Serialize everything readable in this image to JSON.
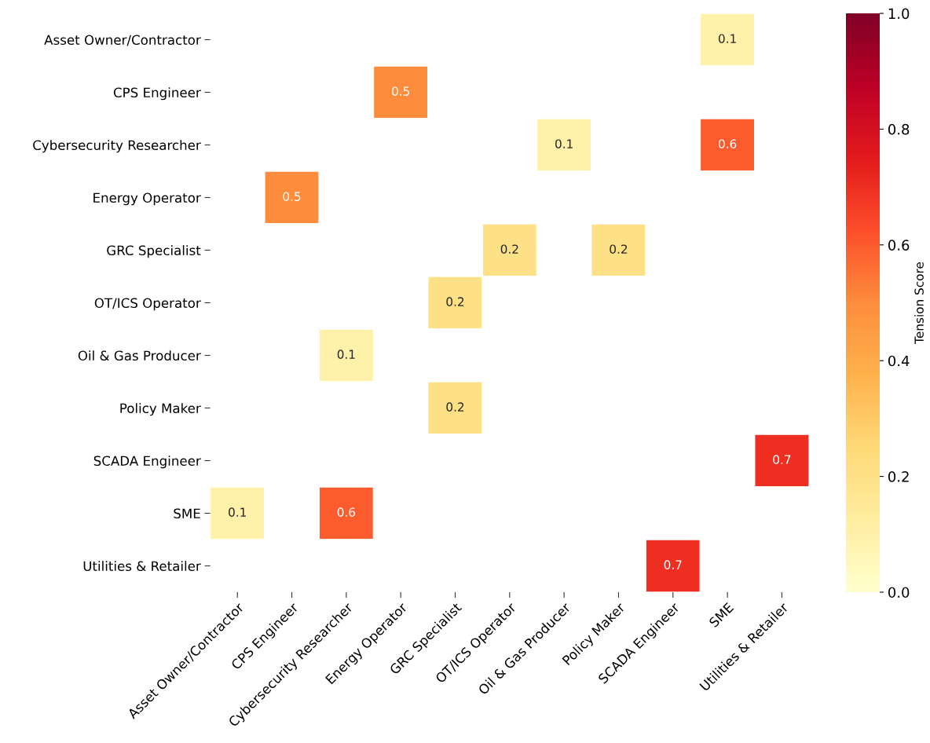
{
  "chart_data": {
    "type": "heatmap",
    "categories": [
      "Asset Owner/Contractor",
      "CPS Engineer",
      "Cybersecurity Researcher",
      "Energy Operator",
      "GRC Specialist",
      "OT/ICS Operator",
      "Oil & Gas Producer",
      "Policy Maker",
      "SCADA Engineer",
      "SME",
      "Utilities & Retailer"
    ],
    "y_categories": [
      "Asset Owner/Contractor",
      "CPS Engineer",
      "Cybersecurity Researcher",
      "Energy Operator",
      "GRC Specialist",
      "OT/ICS Operator",
      "Oil & Gas Producer",
      "Policy Maker",
      "SCADA Engineer",
      "SME",
      "Utilities & Retailer"
    ],
    "cells": [
      [
        null,
        null,
        null,
        null,
        null,
        null,
        null,
        null,
        null,
        0.1,
        null
      ],
      [
        null,
        null,
        null,
        0.5,
        null,
        null,
        null,
        null,
        null,
        null,
        null
      ],
      [
        null,
        null,
        null,
        null,
        null,
        null,
        0.1,
        null,
        null,
        0.6,
        null
      ],
      [
        null,
        0.5,
        null,
        null,
        null,
        null,
        null,
        null,
        null,
        null,
        null
      ],
      [
        null,
        null,
        null,
        null,
        null,
        0.2,
        null,
        0.2,
        null,
        null,
        null
      ],
      [
        null,
        null,
        null,
        null,
        0.2,
        null,
        null,
        null,
        null,
        null,
        null
      ],
      [
        null,
        null,
        0.1,
        null,
        null,
        null,
        null,
        null,
        null,
        null,
        null
      ],
      [
        null,
        null,
        null,
        null,
        0.2,
        null,
        null,
        null,
        null,
        null,
        null
      ],
      [
        null,
        null,
        null,
        null,
        null,
        null,
        null,
        null,
        null,
        null,
        0.7
      ],
      [
        0.1,
        null,
        0.6,
        null,
        null,
        null,
        null,
        null,
        null,
        null,
        null
      ],
      [
        null,
        null,
        null,
        null,
        null,
        null,
        null,
        null,
        0.7,
        null,
        null
      ]
    ],
    "clim": [
      0,
      1
    ],
    "cticks": [
      {
        "value": 0,
        "label": "0.0"
      },
      {
        "value": 0.2,
        "label": "0.2"
      },
      {
        "value": 0.4,
        "label": "0.4"
      },
      {
        "value": 0.6,
        "label": "0.6"
      },
      {
        "value": 0.8,
        "label": "0.8"
      },
      {
        "value": 1,
        "label": "1.0"
      }
    ],
    "clabel": "Tension Score",
    "data_labels": true
  }
}
